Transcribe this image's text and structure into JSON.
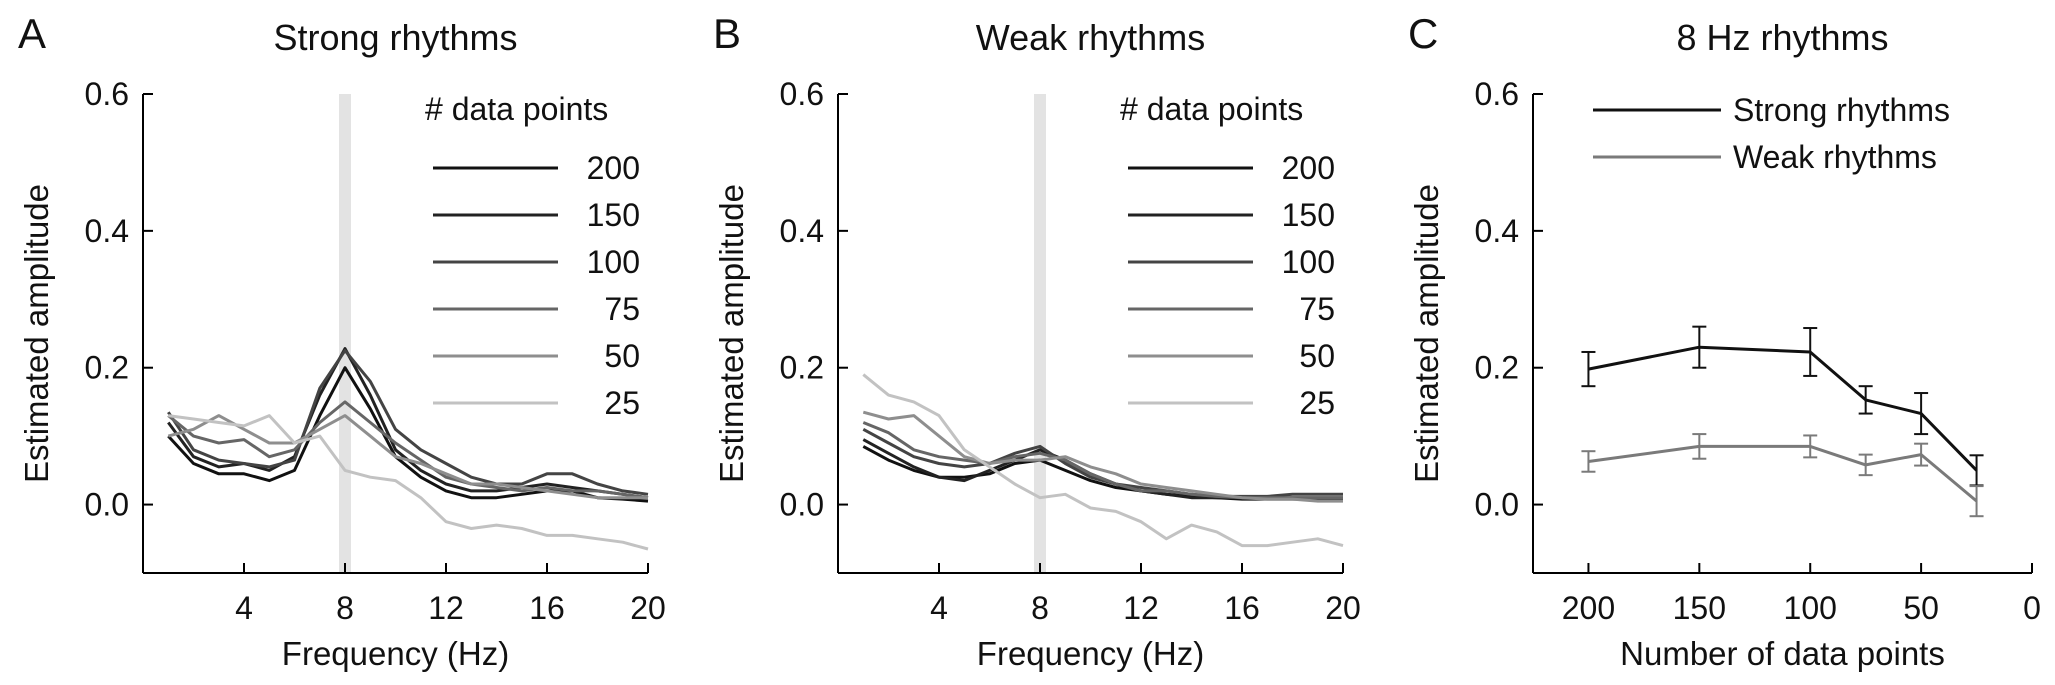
{
  "chart_data": [
    {
      "panel": "A",
      "type": "line",
      "title": "Strong rhythms",
      "xlabel": "Frequency (Hz)",
      "ylabel": "Estimated amplitude",
      "xlim": [
        0,
        20
      ],
      "ylim": [
        -0.1,
        0.6
      ],
      "xticks": [
        4,
        8,
        12,
        16,
        20
      ],
      "yticks": [
        0.0,
        0.2,
        0.4,
        0.6
      ],
      "highlight_x": 8,
      "legend_title": "# data points",
      "legend_placement": "top-right",
      "x": [
        1,
        2,
        3,
        4,
        5,
        6,
        7,
        8,
        9,
        10,
        11,
        12,
        13,
        14,
        15,
        16,
        17,
        18,
        19,
        20
      ],
      "series": [
        {
          "name": "200",
          "color": "#111111",
          "values": [
            0.1,
            0.06,
            0.045,
            0.045,
            0.035,
            0.05,
            0.13,
            0.2,
            0.14,
            0.07,
            0.04,
            0.02,
            0.01,
            0.01,
            0.015,
            0.02,
            0.02,
            0.01,
            0.008,
            0.005
          ]
        },
        {
          "name": "150",
          "color": "#222222",
          "values": [
            0.12,
            0.07,
            0.055,
            0.06,
            0.05,
            0.07,
            0.16,
            0.228,
            0.16,
            0.08,
            0.05,
            0.03,
            0.02,
            0.02,
            0.025,
            0.03,
            0.025,
            0.02,
            0.015,
            0.01
          ]
        },
        {
          "name": "100",
          "color": "#444444",
          "values": [
            0.135,
            0.08,
            0.065,
            0.06,
            0.055,
            0.065,
            0.17,
            0.225,
            0.18,
            0.11,
            0.08,
            0.06,
            0.04,
            0.03,
            0.03,
            0.045,
            0.045,
            0.03,
            0.02,
            0.015
          ]
        },
        {
          "name": "75",
          "color": "#666666",
          "values": [
            0.13,
            0.1,
            0.09,
            0.095,
            0.07,
            0.08,
            0.12,
            0.15,
            0.12,
            0.09,
            0.065,
            0.04,
            0.03,
            0.025,
            0.02,
            0.025,
            0.02,
            0.02,
            0.015,
            0.01
          ]
        },
        {
          "name": "50",
          "color": "#8e8e8e",
          "values": [
            0.1,
            0.11,
            0.13,
            0.11,
            0.09,
            0.09,
            0.11,
            0.13,
            0.1,
            0.07,
            0.06,
            0.045,
            0.03,
            0.03,
            0.025,
            0.02,
            0.015,
            0.01,
            0.01,
            0.01
          ]
        },
        {
          "name": "25",
          "color": "#c2c2c2",
          "values": [
            0.13,
            0.125,
            0.12,
            0.115,
            0.13,
            0.09,
            0.1,
            0.05,
            0.04,
            0.035,
            0.01,
            -0.025,
            -0.035,
            -0.03,
            -0.035,
            -0.045,
            -0.045,
            -0.05,
            -0.055,
            -0.065
          ]
        }
      ]
    },
    {
      "panel": "B",
      "type": "line",
      "title": "Weak rhythms",
      "xlabel": "Frequency (Hz)",
      "ylabel": "Estimated amplitude",
      "xlim": [
        0,
        20
      ],
      "ylim": [
        -0.1,
        0.6
      ],
      "xticks": [
        4,
        8,
        12,
        16,
        20
      ],
      "yticks": [
        0.0,
        0.2,
        0.4,
        0.6
      ],
      "highlight_x": 8,
      "legend_title": "# data points",
      "legend_placement": "top-right",
      "x": [
        1,
        2,
        3,
        4,
        5,
        6,
        7,
        8,
        9,
        10,
        11,
        12,
        13,
        14,
        15,
        16,
        17,
        18,
        19,
        20
      ],
      "series": [
        {
          "name": "200",
          "color": "#111111",
          "values": [
            0.085,
            0.065,
            0.05,
            0.04,
            0.04,
            0.045,
            0.06,
            0.065,
            0.05,
            0.035,
            0.025,
            0.02,
            0.015,
            0.012,
            0.01,
            0.008,
            0.008,
            0.008,
            0.008,
            0.008
          ]
        },
        {
          "name": "150",
          "color": "#222222",
          "values": [
            0.095,
            0.075,
            0.055,
            0.04,
            0.035,
            0.05,
            0.065,
            0.08,
            0.065,
            0.045,
            0.03,
            0.02,
            0.015,
            0.01,
            0.01,
            0.01,
            0.01,
            0.01,
            0.01,
            0.01
          ]
        },
        {
          "name": "100",
          "color": "#444444",
          "values": [
            0.11,
            0.09,
            0.07,
            0.06,
            0.055,
            0.06,
            0.075,
            0.085,
            0.06,
            0.04,
            0.03,
            0.025,
            0.02,
            0.015,
            0.012,
            0.012,
            0.012,
            0.015,
            0.015,
            0.015
          ]
        },
        {
          "name": "75",
          "color": "#666666",
          "values": [
            0.12,
            0.105,
            0.08,
            0.07,
            0.065,
            0.06,
            0.07,
            0.075,
            0.065,
            0.045,
            0.03,
            0.02,
            0.02,
            0.015,
            0.012,
            0.01,
            0.01,
            0.01,
            0.01,
            0.01
          ]
        },
        {
          "name": "50",
          "color": "#8e8e8e",
          "values": [
            0.135,
            0.125,
            0.13,
            0.1,
            0.07,
            0.06,
            0.065,
            0.065,
            0.07,
            0.055,
            0.045,
            0.03,
            0.025,
            0.02,
            0.015,
            0.01,
            0.008,
            0.008,
            0.005,
            0.005
          ]
        },
        {
          "name": "25",
          "color": "#c2c2c2",
          "values": [
            0.19,
            0.16,
            0.15,
            0.13,
            0.08,
            0.055,
            0.03,
            0.01,
            0.015,
            -0.005,
            -0.01,
            -0.025,
            -0.05,
            -0.03,
            -0.04,
            -0.06,
            -0.06,
            -0.055,
            -0.05,
            -0.06
          ]
        }
      ]
    },
    {
      "panel": "C",
      "type": "line",
      "title": "8 Hz rhythms",
      "xlabel": "Number of data points",
      "ylabel": "Estimated amplitude",
      "x_reversed": true,
      "xlim": [
        0,
        225
      ],
      "ylim": [
        -0.1,
        0.6
      ],
      "xticks": [
        200,
        150,
        100,
        50,
        0
      ],
      "yticks": [
        0.0,
        0.2,
        0.4,
        0.6
      ],
      "legend_placement": "top",
      "x": [
        200,
        150,
        100,
        75,
        50,
        25
      ],
      "series": [
        {
          "name": "Strong rhythms",
          "color": "#111111",
          "values": [
            0.198,
            0.23,
            0.223,
            0.153,
            0.133,
            0.05
          ],
          "errors": [
            0.025,
            0.03,
            0.035,
            0.02,
            0.03,
            0.022
          ]
        },
        {
          "name": "Weak rhythms",
          "color": "#7a7a7a",
          "values": [
            0.063,
            0.085,
            0.085,
            0.058,
            0.073,
            0.005
          ],
          "errors": [
            0.015,
            0.018,
            0.016,
            0.015,
            0.016,
            0.022
          ]
        }
      ]
    }
  ]
}
